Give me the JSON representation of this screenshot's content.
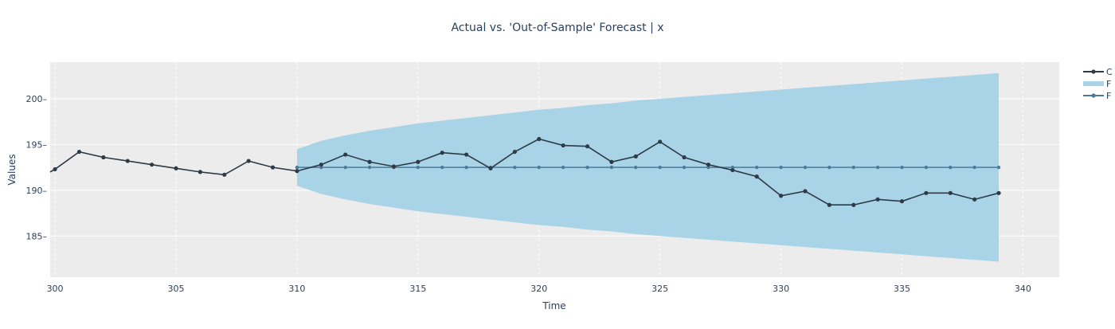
{
  "chart_data": {
    "type": "line",
    "title": "Actual vs. 'Out-of-Sample' Forecast | x",
    "xlabel": "Time",
    "ylabel": "Values",
    "xlim": [
      299.8,
      341.5
    ],
    "ylim": [
      180.5,
      204.0
    ],
    "x_ticks": [
      300,
      305,
      310,
      315,
      320,
      325,
      330,
      335,
      340
    ],
    "y_ticks": [
      185,
      190,
      195,
      200
    ],
    "grid": true,
    "legend_position": "top-right",
    "colors": {
      "plot_background": "#ececec",
      "grid": "#ffffff",
      "actual": "#2e3b46",
      "forecast_interval": "#a9d3e6",
      "forecast": "#4d7a99",
      "text": "#2a3f5f"
    },
    "series": [
      {
        "kind": "actual",
        "x": [
          299.8,
          300,
          301,
          302,
          303,
          304,
          305,
          306,
          307,
          308,
          309,
          310,
          311,
          312,
          313,
          314,
          315,
          316,
          317,
          318,
          319,
          320,
          321,
          322,
          323,
          324,
          325,
          326,
          327,
          328,
          329,
          330,
          331,
          332,
          333,
          334,
          335,
          336,
          337,
          338,
          339
        ],
        "values": [
          192.0,
          192.3,
          194.2,
          193.6,
          193.2,
          192.8,
          192.4,
          192.0,
          191.7,
          193.2,
          192.5,
          192.1,
          192.8,
          193.9,
          193.1,
          192.6,
          193.1,
          194.1,
          193.9,
          192.4,
          194.2,
          195.6,
          194.9,
          194.8,
          193.1,
          193.7,
          195.3,
          193.6,
          192.8,
          192.2,
          191.5,
          189.4,
          189.9,
          188.4,
          188.4,
          189.0,
          188.8,
          189.7,
          189.7,
          189.0,
          189.7
        ]
      },
      {
        "kind": "interval",
        "x": [
          310,
          311,
          312,
          313,
          314,
          315,
          316,
          317,
          318,
          319,
          320,
          321,
          322,
          323,
          324,
          325,
          326,
          327,
          328,
          329,
          330,
          331,
          332,
          333,
          334,
          335,
          336,
          337,
          338,
          339
        ],
        "upper": [
          194.5,
          195.4,
          196.0,
          196.5,
          196.9,
          197.3,
          197.6,
          197.9,
          198.2,
          198.5,
          198.8,
          199.0,
          199.3,
          199.5,
          199.8,
          200.0,
          200.2,
          200.4,
          200.6,
          200.8,
          201.0,
          201.2,
          201.4,
          201.6,
          201.8,
          202.0,
          202.2,
          202.4,
          202.6,
          202.8
        ],
        "lower": [
          190.5,
          189.6,
          189.0,
          188.5,
          188.1,
          187.7,
          187.4,
          187.1,
          186.8,
          186.5,
          186.2,
          186.0,
          185.7,
          185.5,
          185.2,
          185.0,
          184.8,
          184.6,
          184.4,
          184.2,
          184.0,
          183.8,
          183.6,
          183.4,
          183.2,
          183.0,
          182.8,
          182.6,
          182.4,
          182.2
        ]
      },
      {
        "kind": "forecast",
        "x": [
          310,
          311,
          312,
          313,
          314,
          315,
          316,
          317,
          318,
          319,
          320,
          321,
          322,
          323,
          324,
          325,
          326,
          327,
          328,
          329,
          330,
          331,
          332,
          333,
          334,
          335,
          336,
          337,
          338,
          339
        ],
        "values": [
          192.5,
          192.5,
          192.5,
          192.5,
          192.5,
          192.5,
          192.5,
          192.5,
          192.5,
          192.5,
          192.5,
          192.5,
          192.5,
          192.5,
          192.5,
          192.5,
          192.5,
          192.5,
          192.5,
          192.5,
          192.5,
          192.5,
          192.5,
          192.5,
          192.5,
          192.5,
          192.5,
          192.5,
          192.5,
          192.5
        ]
      }
    ],
    "legend_entries": [
      "C",
      "F",
      "F"
    ]
  }
}
